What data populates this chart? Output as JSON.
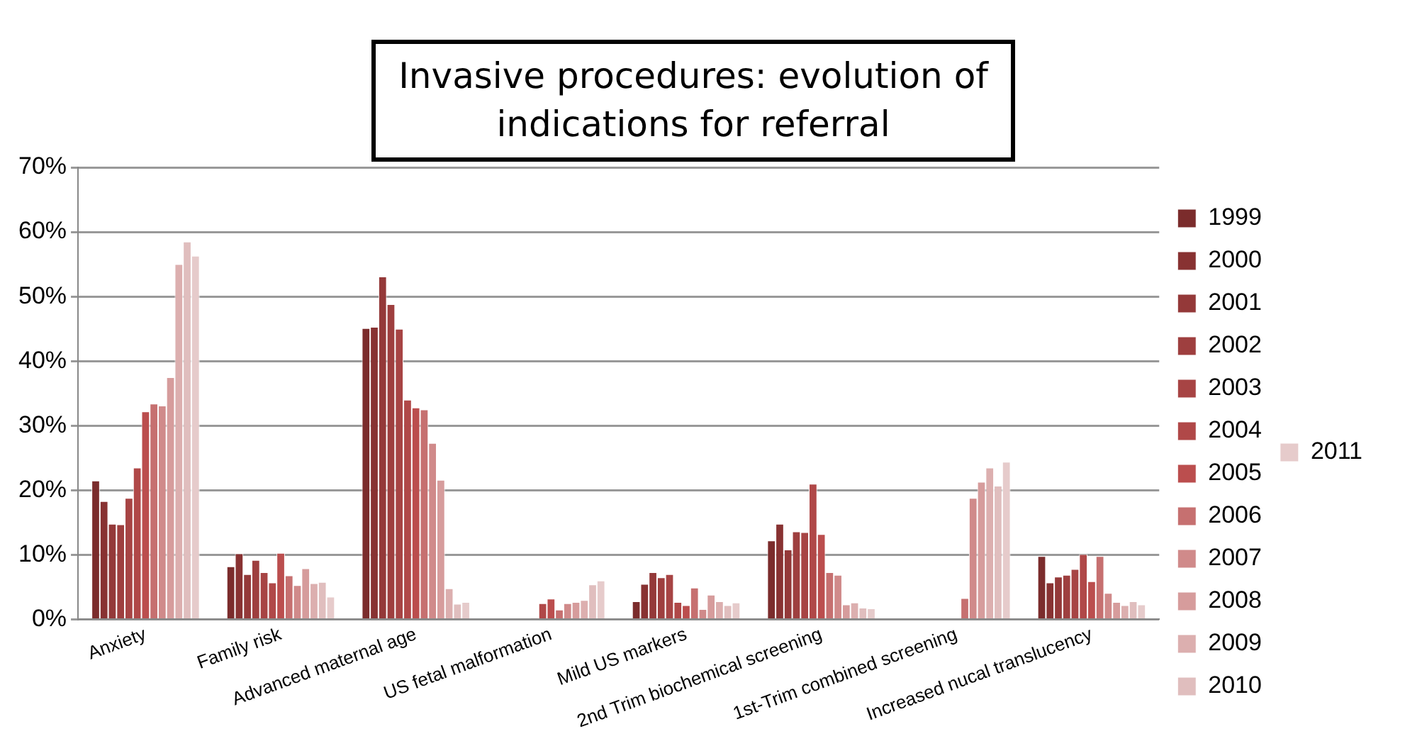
{
  "chart_data": {
    "type": "bar",
    "title": "Invasive procedures: evolution of indications for referral",
    "categories": [
      "Anxiety",
      "Family risk",
      "Advanced maternal age",
      "US fetal malformation",
      "Mild US markers",
      "2nd Trim biochemical screening",
      "1st-Trim combined screening",
      "Increased nucal translucency"
    ],
    "ylim": [
      0,
      70
    ],
    "yticks": [
      {
        "value": 0,
        "label": "0%"
      },
      {
        "value": 10,
        "label": "10%"
      },
      {
        "value": 20,
        "label": "20%"
      },
      {
        "value": 30,
        "label": "30%"
      },
      {
        "value": 40,
        "label": "40%"
      },
      {
        "value": 50,
        "label": "50%"
      },
      {
        "value": 60,
        "label": "60%"
      },
      {
        "value": 70,
        "label": "70%"
      }
    ],
    "grid": "y",
    "legend": "right",
    "series": [
      {
        "name": "1999",
        "color": "#7b2c2c",
        "values": [
          21.5,
          8.2,
          45.1,
          0,
          2.8,
          12.2,
          0,
          9.8
        ]
      },
      {
        "name": "2000",
        "color": "#883232",
        "values": [
          18.3,
          10.2,
          45.3,
          0,
          5.5,
          14.8,
          0,
          5.7
        ]
      },
      {
        "name": "2001",
        "color": "#943939",
        "values": [
          14.8,
          7.0,
          53.1,
          0,
          7.3,
          10.8,
          0,
          6.6
        ]
      },
      {
        "name": "2002",
        "color": "#9e3f3f",
        "values": [
          14.7,
          9.2,
          48.8,
          0,
          6.5,
          13.6,
          0,
          6.9
        ]
      },
      {
        "name": "2003",
        "color": "#a74444",
        "values": [
          18.8,
          7.3,
          45.0,
          0.2,
          7.0,
          13.5,
          0,
          7.8
        ]
      },
      {
        "name": "2004",
        "color": "#b04848",
        "values": [
          23.5,
          5.7,
          34.0,
          2.5,
          2.7,
          21.0,
          0,
          10.1
        ]
      },
      {
        "name": "2005",
        "color": "#bb4e4e",
        "values": [
          32.2,
          10.3,
          32.8,
          3.2,
          2.2,
          13.2,
          0,
          5.9
        ]
      },
      {
        "name": "2006",
        "color": "#c67070",
        "values": [
          33.4,
          6.8,
          32.5,
          1.5,
          4.9,
          7.3,
          3.3,
          9.8
        ]
      },
      {
        "name": "2007",
        "color": "#d08a8a",
        "values": [
          33.1,
          5.3,
          27.3,
          2.5,
          1.6,
          6.9,
          18.8,
          4.1
        ]
      },
      {
        "name": "2008",
        "color": "#d69c9c",
        "values": [
          37.5,
          7.9,
          21.6,
          2.7,
          3.8,
          2.3,
          21.3,
          2.7
        ]
      },
      {
        "name": "2009",
        "color": "#dcafaf",
        "values": [
          55.0,
          5.6,
          4.8,
          3.0,
          2.8,
          2.6,
          23.5,
          2.2
        ]
      },
      {
        "name": "2010",
        "color": "#e0bebe",
        "values": [
          58.5,
          5.8,
          2.4,
          5.4,
          2.2,
          1.8,
          20.7,
          2.8
        ]
      },
      {
        "name": "2011",
        "color": "#e6cbcb",
        "values": [
          56.3,
          3.5,
          2.7,
          6.0,
          2.6,
          1.7,
          24.4,
          2.3
        ]
      }
    ]
  }
}
